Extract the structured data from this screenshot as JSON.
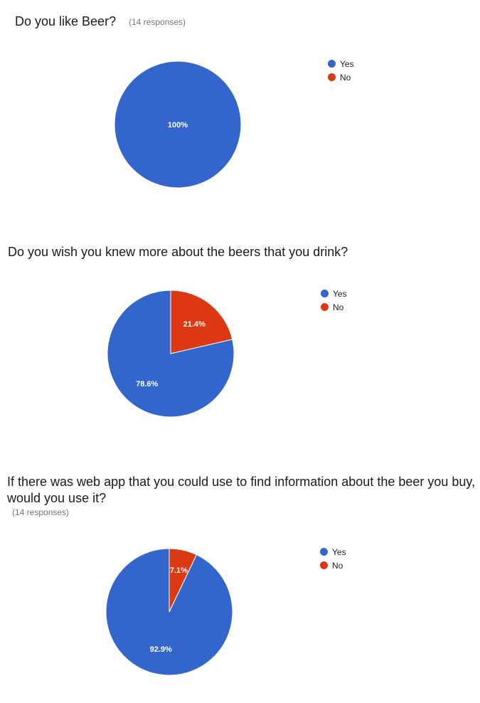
{
  "colors": {
    "yes": "#3366cc",
    "no": "#dc3912"
  },
  "questions": [
    {
      "title": "Do you like Beer?",
      "responses": "(14 responses)"
    },
    {
      "title": "Do you wish you knew more about the beers that you drink?",
      "responses": ""
    },
    {
      "title": "If there was web app that you could use to find information about the beer you buy, would you use it?",
      "responses": "(14 responses)"
    }
  ],
  "chart_data": [
    {
      "type": "pie",
      "categories": [
        "Yes",
        "No"
      ],
      "values": [
        100,
        0
      ],
      "labels": [
        "100%",
        ""
      ],
      "legend_position": "right"
    },
    {
      "type": "pie",
      "categories": [
        "Yes",
        "No"
      ],
      "values": [
        78.6,
        21.4
      ],
      "labels": [
        "78.6%",
        "21.4%"
      ],
      "legend_position": "right"
    },
    {
      "type": "pie",
      "categories": [
        "Yes",
        "No"
      ],
      "values": [
        92.9,
        7.1
      ],
      "labels": [
        "92.9%",
        "7.1%"
      ],
      "legend_position": "right"
    }
  ]
}
